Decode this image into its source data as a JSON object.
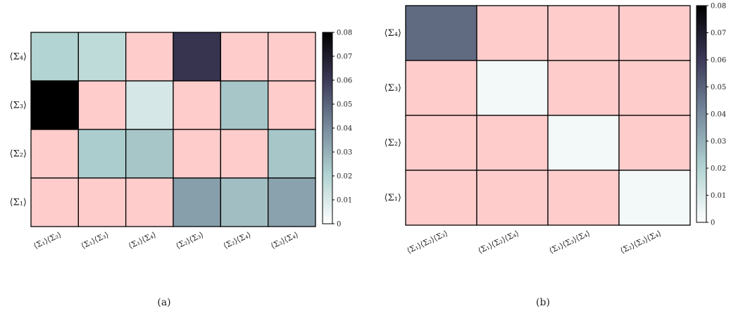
{
  "chart_data": [
    {
      "panel": "(a)",
      "type": "heatmap",
      "rows": [
        "⟨Σ₄⟩",
        "⟨Σ₃⟩",
        "⟨Σ₂⟩",
        "⟨Σ₁⟩"
      ],
      "columns": [
        "⟨Σ₁⟩⟨Σ₂⟩",
        "⟨Σ₁⟩⟨Σ₃⟩",
        "⟨Σ₁⟩⟨Σ₄⟩",
        "⟨Σ₂⟩⟨Σ₃⟩",
        "⟨Σ₂⟩⟨Σ₄⟩",
        "⟨Σ₃⟩⟨Σ₄⟩"
      ],
      "values": [
        [
          0.02,
          0.017,
          null,
          0.062,
          null,
          null
        ],
        [
          0.08,
          null,
          0.011,
          null,
          0.024,
          null
        ],
        [
          null,
          0.022,
          0.024,
          null,
          null,
          0.024
        ],
        [
          null,
          null,
          null,
          0.035,
          0.026,
          0.034
        ]
      ],
      "masked_color": "#ffcccc",
      "colorbar": {
        "min": 0,
        "max": 0.08,
        "ticks": [
          "0",
          "0.01",
          "0.02",
          "0.03",
          "0.04",
          "0.05",
          "0.06",
          "0.07",
          "0.08"
        ]
      }
    },
    {
      "panel": "(b)",
      "type": "heatmap",
      "rows": [
        "⟨Σ₄⟩",
        "⟨Σ₃⟩",
        "⟨Σ₂⟩",
        "⟨Σ₁⟩"
      ],
      "columns": [
        "⟨Σ₁⟩⟨Σ₂⟩⟨Σ₃⟩",
        "⟨Σ₁⟩⟨Σ₂⟩⟨Σ₄⟩",
        "⟨Σ₁⟩⟨Σ₃⟩⟨Σ₄⟩",
        "⟨Σ₂⟩⟨Σ₃⟩⟨Σ₄⟩"
      ],
      "values": [
        [
          0.048,
          null,
          null,
          null
        ],
        [
          null,
          0.003,
          null,
          null
        ],
        [
          null,
          null,
          0.003,
          null
        ],
        [
          null,
          null,
          null,
          0.003
        ]
      ],
      "masked_color": "#ffcccc",
      "colorbar": {
        "min": 0,
        "max": 0.08,
        "ticks": [
          "0",
          "0.01",
          "0.02",
          "0.03",
          "0.04",
          "0.05",
          "0.06",
          "0.07",
          "0.08"
        ]
      }
    }
  ]
}
